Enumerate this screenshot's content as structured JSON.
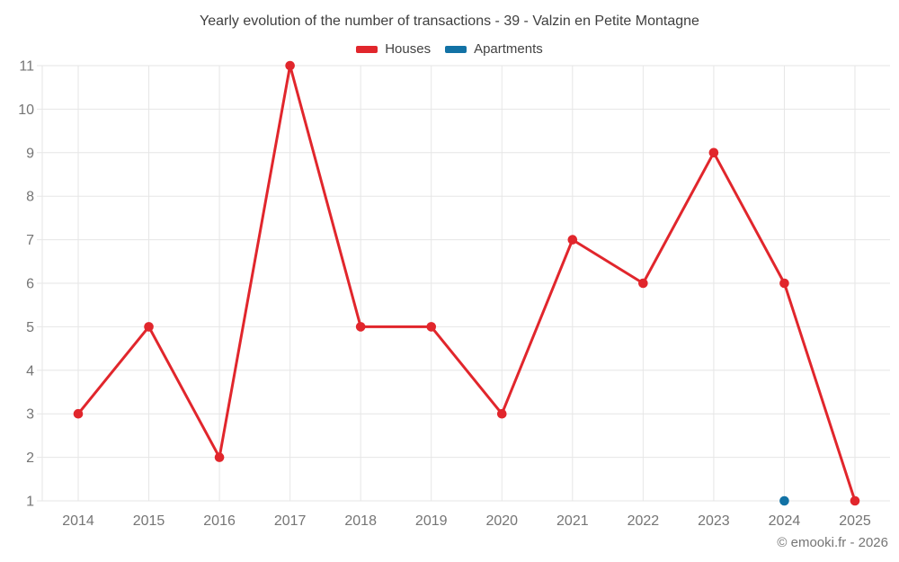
{
  "title": "Yearly evolution of the number of transactions - 39 - Valzin en Petite Montagne",
  "footer": "© emooki.fr - 2026",
  "legend": {
    "items": [
      {
        "label": "Houses",
        "color": "#e1262c"
      },
      {
        "label": "Apartments",
        "color": "#1272a5"
      }
    ]
  },
  "chart_data": {
    "type": "line",
    "title": "Yearly evolution of the number of transactions - 39 - Valzin en Petite Montagne",
    "x": [
      2014,
      2015,
      2016,
      2017,
      2018,
      2019,
      2020,
      2021,
      2022,
      2023,
      2024,
      2025
    ],
    "series": [
      {
        "name": "Houses",
        "color": "#e1262c",
        "values": [
          3,
          5,
          2,
          11,
          5,
          5,
          3,
          7,
          6,
          9,
          6,
          1
        ]
      },
      {
        "name": "Apartments",
        "color": "#1272a5",
        "values": [
          null,
          null,
          null,
          null,
          null,
          null,
          null,
          null,
          null,
          null,
          1,
          null
        ]
      }
    ],
    "xlabel": "",
    "ylabel": "",
    "ylim": [
      1,
      11
    ],
    "yticks": [
      1,
      2,
      3,
      4,
      5,
      6,
      7,
      8,
      9,
      10,
      11
    ],
    "grid": true,
    "legend_position": "top",
    "grid_color": "#e6e6e6",
    "tick_label_color": "#757575"
  }
}
